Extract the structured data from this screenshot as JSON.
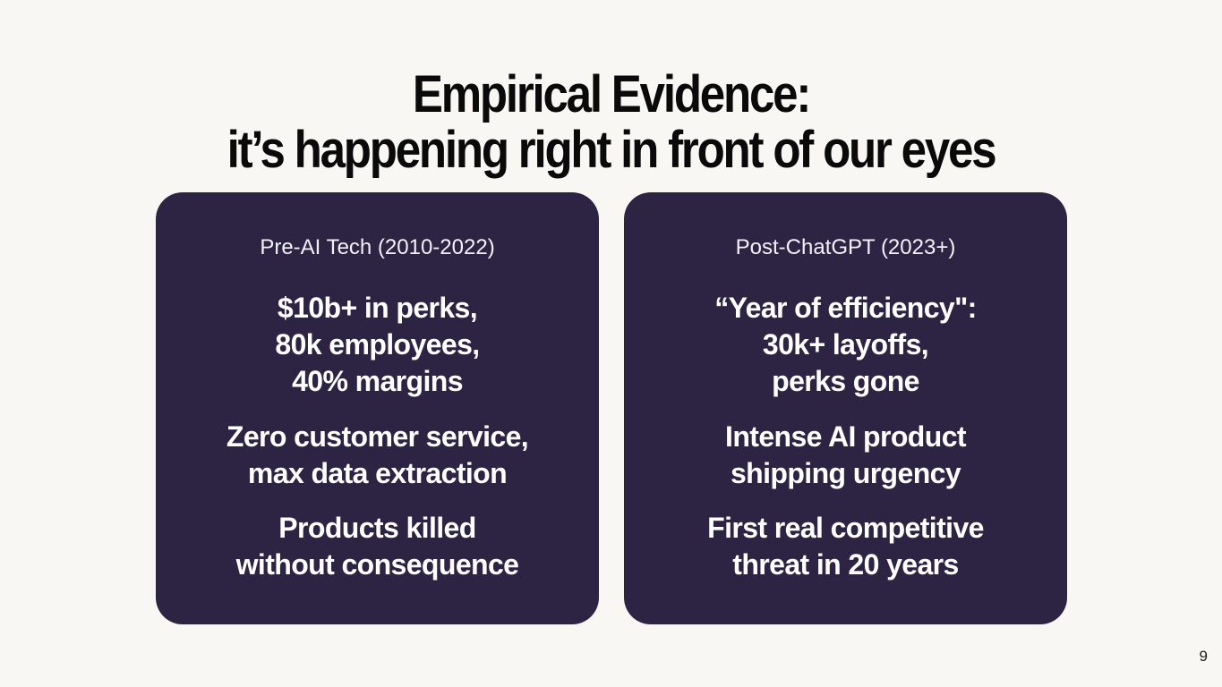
{
  "slide": {
    "title_line_1": "Empirical Evidence:",
    "title_line_2": "it’s happening right in front of our eyes",
    "page_number": "9"
  },
  "cards": {
    "left": {
      "heading": "Pre-AI Tech (2010-2022)",
      "points": [
        [
          "$10b+ in perks,",
          "80k employees,",
          "40% margins"
        ],
        [
          "Zero customer service,",
          "max data extraction"
        ],
        [
          "Products killed",
          "without consequence"
        ]
      ]
    },
    "right": {
      "heading": "Post-ChatGPT (2023+)",
      "points": [
        [
          "“Year of efficiency\":",
          "30k+ layoffs,",
          "perks gone"
        ],
        [
          "Intense AI product",
          "shipping urgency"
        ],
        [
          "First real competitive",
          "threat in 20 years"
        ]
      ]
    }
  },
  "colors": {
    "background": "#f8f7f4",
    "card": "#2c2442",
    "title_text": "#0a0a0a",
    "card_text": "#ffffff"
  }
}
